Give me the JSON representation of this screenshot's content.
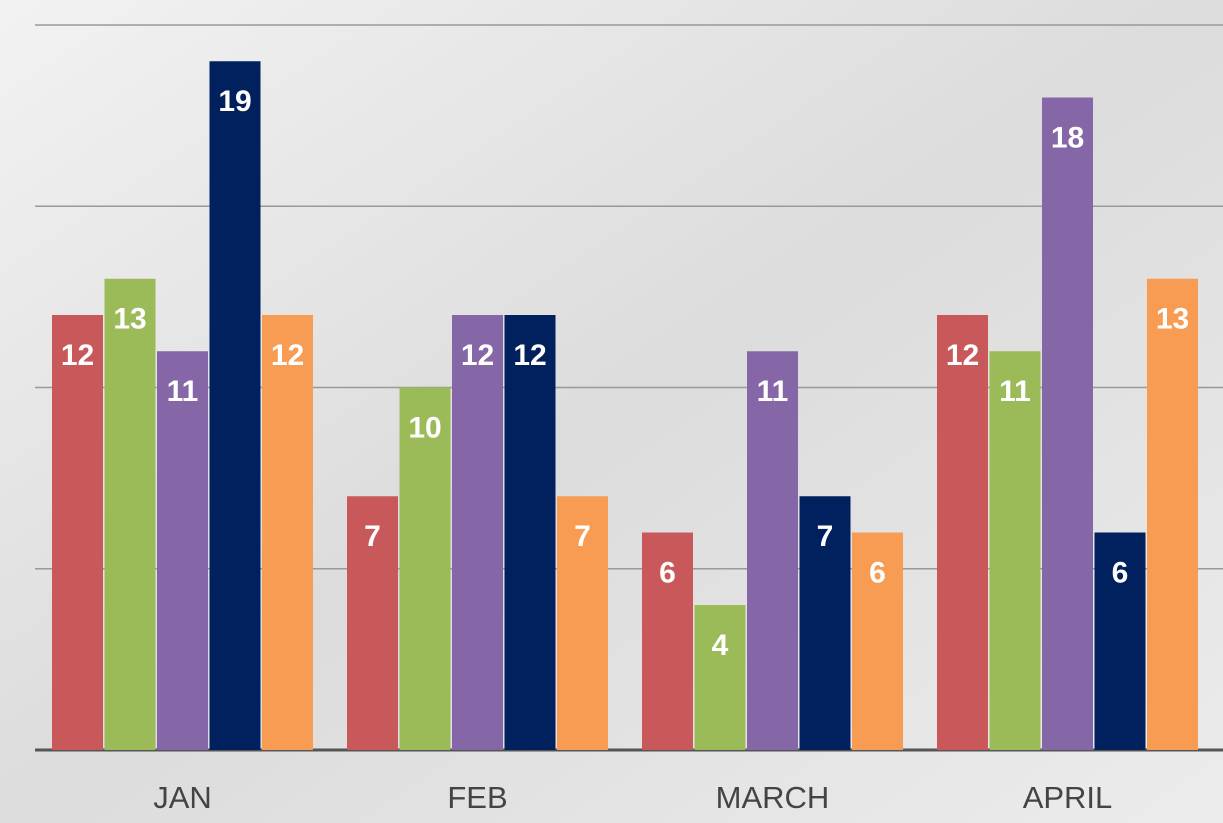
{
  "chart_data": {
    "type": "bar",
    "categories": [
      "JAN",
      "FEB",
      "MARCH",
      "APRIL"
    ],
    "series": [
      {
        "color": "#c9585a",
        "values": [
          12,
          7,
          6,
          12
        ]
      },
      {
        "color": "#9bbb59",
        "values": [
          13,
          10,
          4,
          11
        ]
      },
      {
        "color": "#8567a8",
        "values": [
          11,
          12,
          11,
          18
        ]
      },
      {
        "color": "#00205e",
        "values": [
          19,
          12,
          7,
          6
        ]
      },
      {
        "color": "#f79c52",
        "values": [
          12,
          7,
          6,
          13
        ]
      }
    ],
    "ylim": [
      0,
      20
    ],
    "yticks": [
      0,
      5,
      10,
      15,
      20
    ],
    "grid": true
  }
}
